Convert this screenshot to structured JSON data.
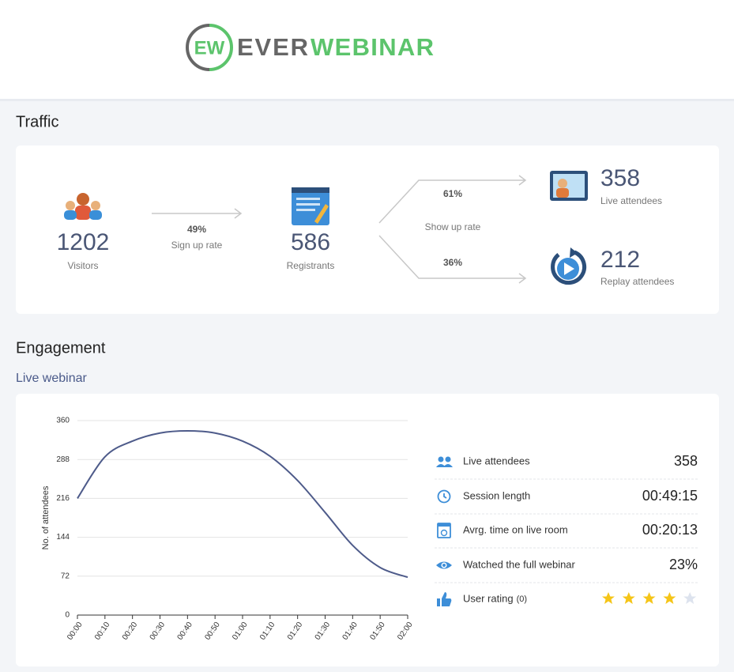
{
  "header": {
    "logo_mark": "EW",
    "logo_text_1": "EVER",
    "logo_text_2": "WEBINAR"
  },
  "traffic": {
    "title": "Traffic",
    "visitors": {
      "value": "1202",
      "label": "Visitors"
    },
    "signup": {
      "rate": "49%",
      "label": "Sign up rate"
    },
    "registrants": {
      "value": "586",
      "label": "Registrants"
    },
    "showup": {
      "live_rate": "61%",
      "label": "Show up rate",
      "replay_rate": "36%"
    },
    "live": {
      "value": "358",
      "label": "Live attendees"
    },
    "replay": {
      "value": "212",
      "label": "Replay attendees"
    }
  },
  "engagement": {
    "title": "Engagement",
    "subtitle": "Live webinar",
    "chart_data": {
      "type": "line",
      "y_label": "No. of attendees",
      "categories": [
        "00:00",
        "00:10",
        "00:20",
        "00:30",
        "00:40",
        "00:50",
        "01:00",
        "01:10",
        "01:20",
        "01:30",
        "01:40",
        "01:50",
        "02:00"
      ],
      "series": [
        {
          "name": "Attendees",
          "color": "#4e5b8a",
          "values": [
            216,
            293,
            322,
            337,
            341,
            337,
            322,
            294,
            249,
            190,
            129,
            88,
            70
          ]
        }
      ],
      "ylim": [
        0,
        360
      ],
      "yticks": [
        0,
        72,
        144,
        216,
        288,
        360
      ],
      "grid": true
    },
    "stats": [
      {
        "label": "Live attendees",
        "value": "358"
      },
      {
        "label": "Session length",
        "value": "00:49:15"
      },
      {
        "label": "Avrg. time on live room",
        "value": "00:20:13"
      },
      {
        "label": "Watched the full webinar",
        "value": "23%"
      },
      {
        "label": "User rating",
        "count": "(0)",
        "rating": 4,
        "rating_max": 5
      }
    ]
  }
}
